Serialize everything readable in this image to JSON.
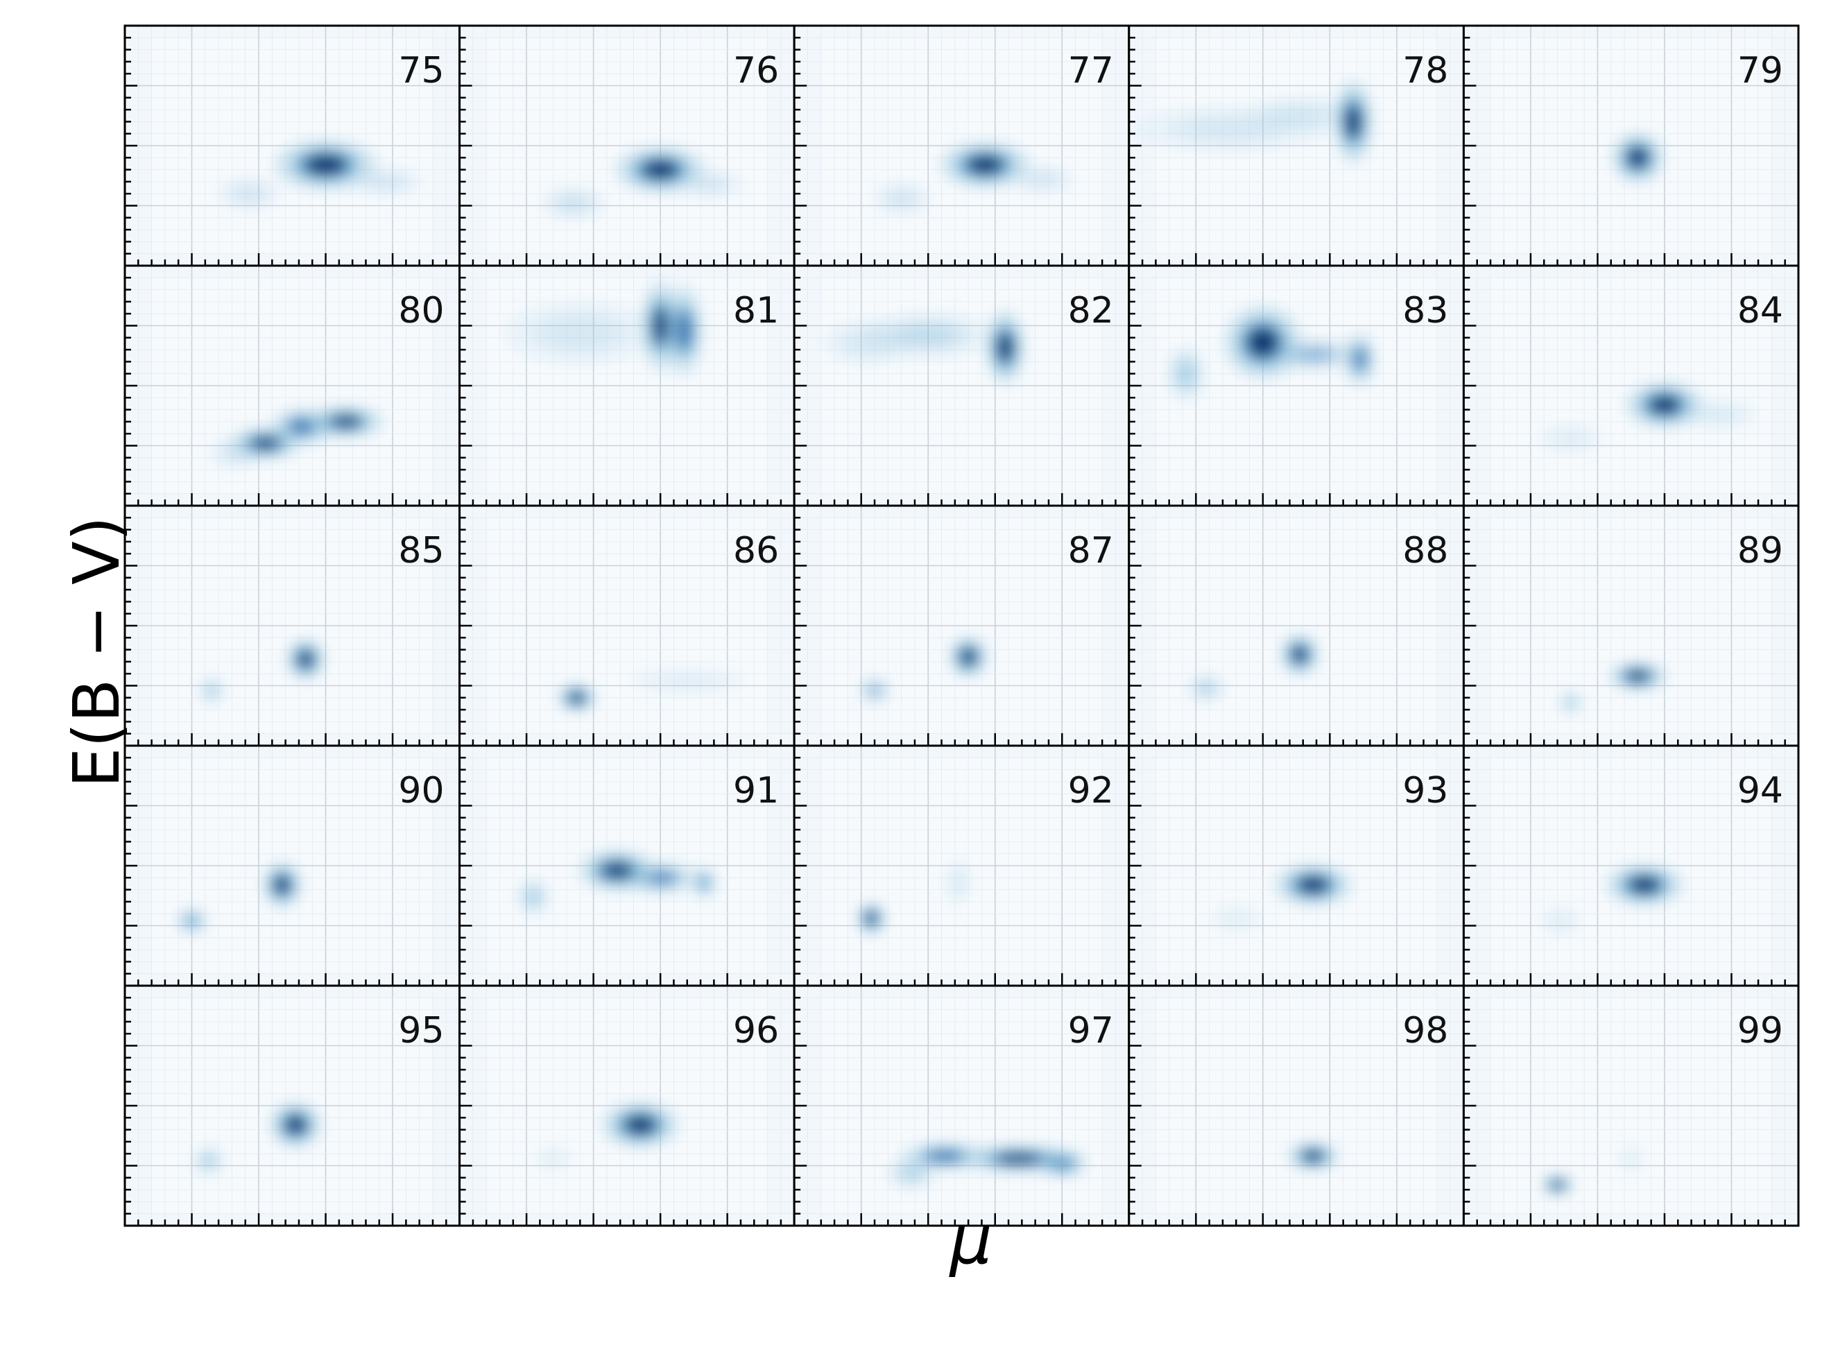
{
  "chart_data": {
    "type": "heatmap",
    "title": "",
    "xlabel": "μ",
    "ylabel": "E(B − V)",
    "grid": true,
    "colormap": "Blues",
    "layout": "5x5 small multiples, shared axes",
    "panels": [
      {
        "label": "75",
        "blobs": [
          {
            "x": 0.6,
            "y": 0.42,
            "sx": 0.08,
            "sy": 0.055,
            "w": 1.0
          },
          {
            "x": 0.37,
            "y": 0.3,
            "sx": 0.05,
            "sy": 0.035,
            "w": 0.15
          },
          {
            "x": 0.78,
            "y": 0.35,
            "sx": 0.06,
            "sy": 0.03,
            "w": 0.15
          }
        ]
      },
      {
        "label": "76",
        "blobs": [
          {
            "x": 0.6,
            "y": 0.4,
            "sx": 0.07,
            "sy": 0.05,
            "w": 1.0
          },
          {
            "x": 0.34,
            "y": 0.26,
            "sx": 0.05,
            "sy": 0.035,
            "w": 0.18
          },
          {
            "x": 0.75,
            "y": 0.34,
            "sx": 0.05,
            "sy": 0.03,
            "w": 0.15
          }
        ]
      },
      {
        "label": "77",
        "blobs": [
          {
            "x": 0.57,
            "y": 0.42,
            "sx": 0.07,
            "sy": 0.05,
            "w": 1.0
          },
          {
            "x": 0.32,
            "y": 0.28,
            "sx": 0.045,
            "sy": 0.035,
            "w": 0.15
          },
          {
            "x": 0.74,
            "y": 0.36,
            "sx": 0.05,
            "sy": 0.03,
            "w": 0.15
          }
        ]
      },
      {
        "label": "78",
        "blobs": [
          {
            "x": 0.67,
            "y": 0.6,
            "sx": 0.03,
            "sy": 0.09,
            "w": 1.0
          },
          {
            "x": 0.3,
            "y": 0.57,
            "sx": 0.15,
            "sy": 0.05,
            "w": 0.12
          },
          {
            "x": 0.52,
            "y": 0.63,
            "sx": 0.09,
            "sy": 0.04,
            "w": 0.12
          }
        ]
      },
      {
        "label": "79",
        "blobs": [
          {
            "x": 0.52,
            "y": 0.45,
            "sx": 0.04,
            "sy": 0.055,
            "w": 1.0
          }
        ]
      },
      {
        "label": "80",
        "blobs": [
          {
            "x": 0.42,
            "y": 0.26,
            "sx": 0.055,
            "sy": 0.035,
            "w": 0.9
          },
          {
            "x": 0.53,
            "y": 0.33,
            "sx": 0.05,
            "sy": 0.04,
            "w": 0.7
          },
          {
            "x": 0.66,
            "y": 0.35,
            "sx": 0.06,
            "sy": 0.035,
            "w": 0.85
          },
          {
            "x": 0.33,
            "y": 0.22,
            "sx": 0.04,
            "sy": 0.035,
            "w": 0.15
          }
        ]
      },
      {
        "label": "81",
        "blobs": [
          {
            "x": 0.6,
            "y": 0.75,
            "sx": 0.03,
            "sy": 0.1,
            "w": 0.85
          },
          {
            "x": 0.67,
            "y": 0.73,
            "sx": 0.03,
            "sy": 0.1,
            "w": 0.75
          },
          {
            "x": 0.36,
            "y": 0.72,
            "sx": 0.12,
            "sy": 0.07,
            "w": 0.12
          }
        ]
      },
      {
        "label": "82",
        "blobs": [
          {
            "x": 0.63,
            "y": 0.66,
            "sx": 0.03,
            "sy": 0.08,
            "w": 1.0
          },
          {
            "x": 0.4,
            "y": 0.71,
            "sx": 0.1,
            "sy": 0.05,
            "w": 0.2
          },
          {
            "x": 0.22,
            "y": 0.68,
            "sx": 0.07,
            "sy": 0.05,
            "w": 0.12
          }
        ]
      },
      {
        "label": "83",
        "blobs": [
          {
            "x": 0.4,
            "y": 0.68,
            "sx": 0.06,
            "sy": 0.08,
            "w": 1.0
          },
          {
            "x": 0.55,
            "y": 0.63,
            "sx": 0.08,
            "sy": 0.035,
            "w": 0.35
          },
          {
            "x": 0.69,
            "y": 0.61,
            "sx": 0.025,
            "sy": 0.06,
            "w": 0.6
          },
          {
            "x": 0.17,
            "y": 0.55,
            "sx": 0.03,
            "sy": 0.06,
            "w": 0.3
          }
        ]
      },
      {
        "label": "84",
        "blobs": [
          {
            "x": 0.6,
            "y": 0.42,
            "sx": 0.06,
            "sy": 0.05,
            "w": 1.0
          },
          {
            "x": 0.32,
            "y": 0.28,
            "sx": 0.05,
            "sy": 0.03,
            "w": 0.08
          },
          {
            "x": 0.76,
            "y": 0.38,
            "sx": 0.06,
            "sy": 0.03,
            "w": 0.1
          }
        ]
      },
      {
        "label": "85",
        "blobs": [
          {
            "x": 0.54,
            "y": 0.36,
            "sx": 0.03,
            "sy": 0.045,
            "w": 1.0
          },
          {
            "x": 0.26,
            "y": 0.23,
            "sx": 0.02,
            "sy": 0.03,
            "w": 0.3
          }
        ]
      },
      {
        "label": "86",
        "blobs": [
          {
            "x": 0.35,
            "y": 0.2,
            "sx": 0.03,
            "sy": 0.03,
            "w": 1.0
          },
          {
            "x": 0.68,
            "y": 0.27,
            "sx": 0.09,
            "sy": 0.025,
            "w": 0.08
          }
        ]
      },
      {
        "label": "87",
        "blobs": [
          {
            "x": 0.52,
            "y": 0.37,
            "sx": 0.03,
            "sy": 0.045,
            "w": 1.0
          },
          {
            "x": 0.24,
            "y": 0.23,
            "sx": 0.025,
            "sy": 0.03,
            "w": 0.35
          }
        ]
      },
      {
        "label": "88",
        "blobs": [
          {
            "x": 0.51,
            "y": 0.38,
            "sx": 0.03,
            "sy": 0.045,
            "w": 1.0
          },
          {
            "x": 0.23,
            "y": 0.24,
            "sx": 0.03,
            "sy": 0.03,
            "w": 0.25
          }
        ]
      },
      {
        "label": "89",
        "blobs": [
          {
            "x": 0.52,
            "y": 0.29,
            "sx": 0.045,
            "sy": 0.03,
            "w": 1.0
          },
          {
            "x": 0.32,
            "y": 0.18,
            "sx": 0.02,
            "sy": 0.025,
            "w": 0.3
          }
        ]
      },
      {
        "label": "90",
        "blobs": [
          {
            "x": 0.47,
            "y": 0.42,
            "sx": 0.03,
            "sy": 0.05,
            "w": 1.0
          },
          {
            "x": 0.2,
            "y": 0.27,
            "sx": 0.025,
            "sy": 0.03,
            "w": 0.45
          }
        ]
      },
      {
        "label": "91",
        "blobs": [
          {
            "x": 0.47,
            "y": 0.48,
            "sx": 0.06,
            "sy": 0.045,
            "w": 0.9
          },
          {
            "x": 0.6,
            "y": 0.45,
            "sx": 0.06,
            "sy": 0.035,
            "w": 0.55
          },
          {
            "x": 0.73,
            "y": 0.43,
            "sx": 0.02,
            "sy": 0.035,
            "w": 0.5
          },
          {
            "x": 0.22,
            "y": 0.37,
            "sx": 0.025,
            "sy": 0.04,
            "w": 0.3
          }
        ]
      },
      {
        "label": "92",
        "blobs": [
          {
            "x": 0.23,
            "y": 0.28,
            "sx": 0.022,
            "sy": 0.035,
            "w": 1.0
          },
          {
            "x": 0.49,
            "y": 0.43,
            "sx": 0.02,
            "sy": 0.05,
            "w": 0.1
          }
        ]
      },
      {
        "label": "93",
        "blobs": [
          {
            "x": 0.55,
            "y": 0.42,
            "sx": 0.06,
            "sy": 0.045,
            "w": 1.0
          },
          {
            "x": 0.32,
            "y": 0.28,
            "sx": 0.04,
            "sy": 0.03,
            "w": 0.06
          }
        ]
      },
      {
        "label": "94",
        "blobs": [
          {
            "x": 0.54,
            "y": 0.42,
            "sx": 0.06,
            "sy": 0.045,
            "w": 1.0
          },
          {
            "x": 0.29,
            "y": 0.27,
            "sx": 0.03,
            "sy": 0.03,
            "w": 0.08
          }
        ]
      },
      {
        "label": "95",
        "blobs": [
          {
            "x": 0.51,
            "y": 0.42,
            "sx": 0.04,
            "sy": 0.05,
            "w": 1.0
          },
          {
            "x": 0.25,
            "y": 0.27,
            "sx": 0.025,
            "sy": 0.03,
            "w": 0.3
          }
        ]
      },
      {
        "label": "96",
        "blobs": [
          {
            "x": 0.54,
            "y": 0.42,
            "sx": 0.06,
            "sy": 0.05,
            "w": 1.0
          },
          {
            "x": 0.28,
            "y": 0.28,
            "sx": 0.03,
            "sy": 0.025,
            "w": 0.07
          }
        ]
      },
      {
        "label": "97",
        "blobs": [
          {
            "x": 0.45,
            "y": 0.29,
            "sx": 0.07,
            "sy": 0.03,
            "w": 0.7
          },
          {
            "x": 0.67,
            "y": 0.28,
            "sx": 0.09,
            "sy": 0.03,
            "w": 0.9
          },
          {
            "x": 0.8,
            "y": 0.26,
            "sx": 0.04,
            "sy": 0.03,
            "w": 0.75
          },
          {
            "x": 0.35,
            "y": 0.22,
            "sx": 0.04,
            "sy": 0.035,
            "w": 0.25
          }
        ]
      },
      {
        "label": "98",
        "blobs": [
          {
            "x": 0.55,
            "y": 0.29,
            "sx": 0.04,
            "sy": 0.03,
            "w": 1.0
          }
        ]
      },
      {
        "label": "99",
        "blobs": [
          {
            "x": 0.28,
            "y": 0.17,
            "sx": 0.025,
            "sy": 0.022,
            "w": 1.0
          },
          {
            "x": 0.5,
            "y": 0.28,
            "sx": 0.02,
            "sy": 0.03,
            "w": 0.06
          }
        ]
      }
    ]
  }
}
